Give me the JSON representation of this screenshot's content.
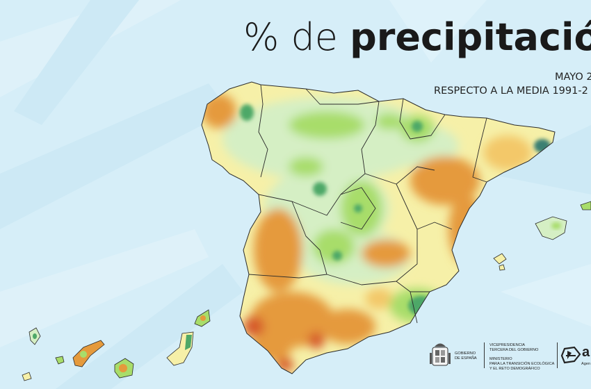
{
  "title": {
    "light": "% de ",
    "bold": "precipitació"
  },
  "subtitle": {
    "period": "MAYO 2",
    "reference": "RESPECTO A LA MEDIA 1991-2"
  },
  "footer": {
    "gobierno": [
      "GOBIERNO",
      "DE ESPAÑA"
    ],
    "vicepresidencia": [
      "VICEPRESIDENCIA",
      "TERCERA DEL GOBIERNO"
    ],
    "ministerio": [
      "MINISTERIO",
      "PARA LA TRANSICIÓN ECOLÓGICA",
      "Y EL RETO DEMOGRÁFICO"
    ],
    "agency_logo_text": "a",
    "agency_small_text": "Agen"
  },
  "colors": {
    "sea": "#d6eef8",
    "very_dry": "#d65a2a",
    "dry": "#e59a3c",
    "slightly_dry": "#f3c869",
    "near_normal": "#f6f0a8",
    "normal": "#d5efc4",
    "wet": "#a8dd6a",
    "very_wet": "#4ea867",
    "extremely_wet": "#3b7f72",
    "border": "#2a2a2a"
  }
}
